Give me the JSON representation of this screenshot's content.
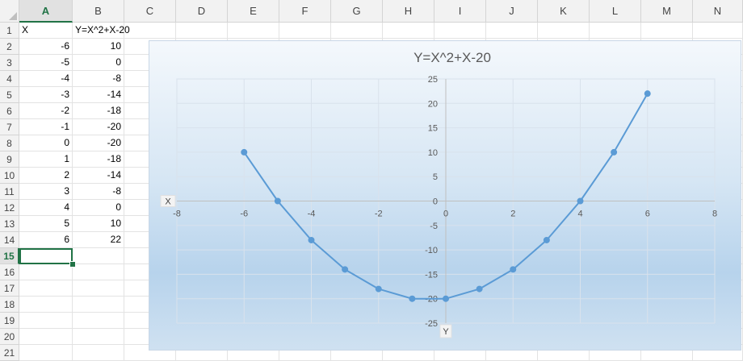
{
  "columns": [
    "A",
    "B",
    "C",
    "D",
    "E",
    "F",
    "G",
    "H",
    "I",
    "J",
    "K",
    "L",
    "M",
    "N"
  ],
  "active_column": "A",
  "rows": [
    "1",
    "2",
    "3",
    "4",
    "5",
    "6",
    "7",
    "8",
    "9",
    "10",
    "11",
    "12",
    "13",
    "14",
    "15",
    "16",
    "17",
    "18",
    "19",
    "20",
    "21"
  ],
  "active_row": "15",
  "headers": {
    "x": "X",
    "y": "Y=X^2+X-20"
  },
  "table": [
    {
      "x": "-6",
      "y": "10"
    },
    {
      "x": "-5",
      "y": "0"
    },
    {
      "x": "-4",
      "y": "-8"
    },
    {
      "x": "-3",
      "y": "-14"
    },
    {
      "x": "-2",
      "y": "-18"
    },
    {
      "x": "-1",
      "y": "-20"
    },
    {
      "x": "0",
      "y": "-20"
    },
    {
      "x": "1",
      "y": "-18"
    },
    {
      "x": "2",
      "y": "-14"
    },
    {
      "x": "3",
      "y": "-8"
    },
    {
      "x": "4",
      "y": "0"
    },
    {
      "x": "5",
      "y": "10"
    },
    {
      "x": "6",
      "y": "22"
    }
  ],
  "chart_data": {
    "type": "scatter",
    "title": "Y=X^2+X-20",
    "xlabel": "X",
    "ylabel": "Y",
    "xlim": [
      -8,
      8
    ],
    "ylim": [
      -25,
      25
    ],
    "x_ticks": [
      "-8",
      "-6",
      "-4",
      "-2",
      "0",
      "2",
      "4",
      "6",
      "8"
    ],
    "y_ticks": [
      "25",
      "20",
      "15",
      "10",
      "5",
      "0",
      "-5",
      "-10",
      "-15",
      "-20",
      "-25"
    ],
    "grid": true,
    "line_color": "#5b9bd5",
    "series": [
      {
        "x": [
          -6,
          -5,
          -4,
          -3,
          -2,
          -1,
          0,
          1,
          2,
          3,
          4,
          5,
          6
        ],
        "y": [
          10,
          0,
          -8,
          -14,
          -18,
          -20,
          -20,
          -18,
          -14,
          -8,
          0,
          10,
          22
        ]
      }
    ]
  }
}
